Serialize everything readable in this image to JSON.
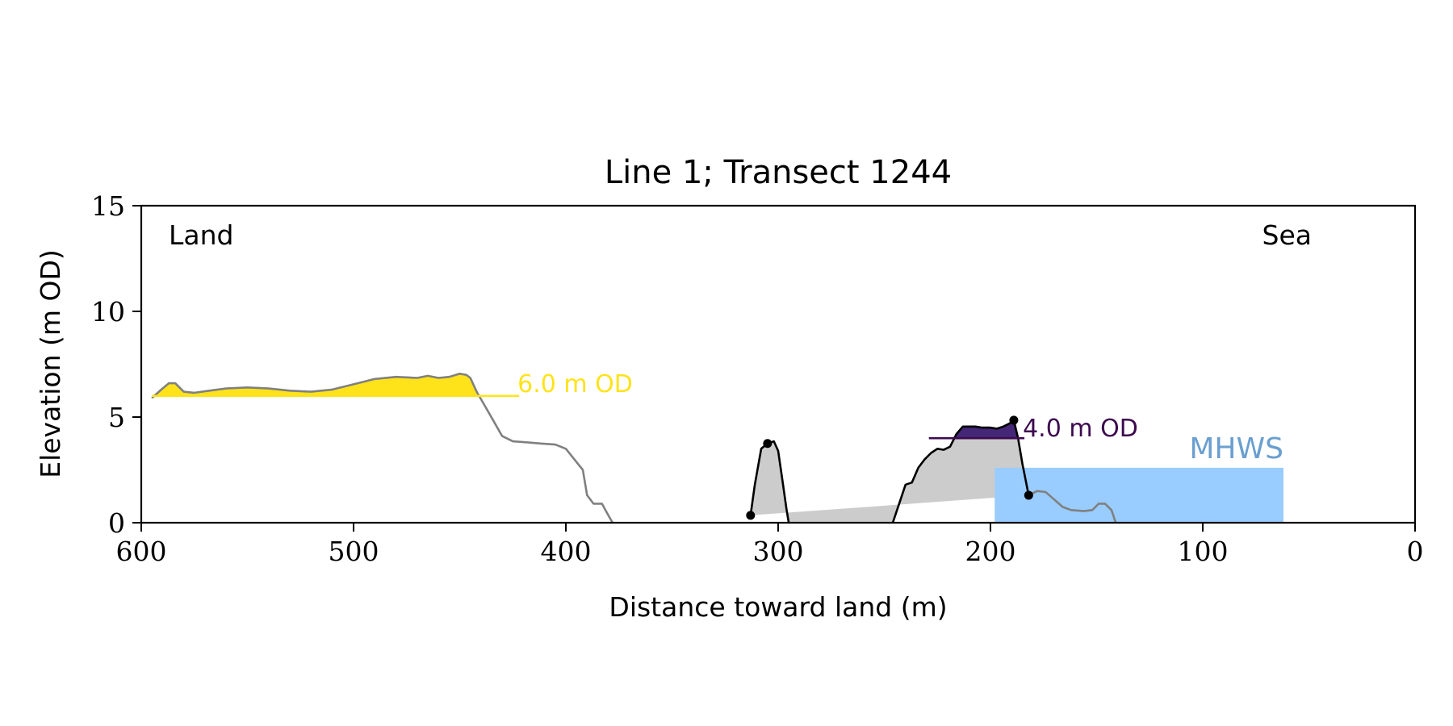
{
  "chart_data": {
    "type": "area",
    "title": "Line 1; Transect 1244",
    "xlabel": "Distance toward land (m)",
    "ylabel": "Elevation (m OD)",
    "xlim": [
      600,
      0
    ],
    "ylim": [
      0,
      15
    ],
    "x_ticks": [
      600,
      500,
      400,
      300,
      200,
      100,
      0
    ],
    "y_ticks": [
      0,
      5,
      10,
      15
    ],
    "grid": false,
    "corner_labels": {
      "left": "Land",
      "right": "Sea"
    },
    "colors": {
      "profile": "#808080",
      "dune_outline": "#000000",
      "dune_fill": "#cccccc",
      "high_fill": "#ffe31a",
      "top_fill": "#452777",
      "low_line": "#3d0a4f",
      "mhws_fill": "#99ccff",
      "mhws_text": "#6a9fd0"
    },
    "annotations": [
      {
        "id": "level-high",
        "label": "6.0 m OD",
        "elevation": 6.0,
        "x_start": 595,
        "x_end": 422,
        "color": "#ffe31a"
      },
      {
        "id": "level-low",
        "label": "4.0 m OD",
        "elevation": 4.0,
        "x_start": 229,
        "x_end": 184,
        "color": "#3d0a4f"
      }
    ],
    "mhws": {
      "label": "MHWS",
      "elevation": 2.6,
      "x_start": 198,
      "x_end": 62
    },
    "series": [
      {
        "role": "profile-land",
        "points": [
          [
            595,
            5.9
          ],
          [
            590,
            6.35
          ],
          [
            587,
            6.6
          ],
          [
            584,
            6.6
          ],
          [
            580,
            6.2
          ],
          [
            575,
            6.15
          ],
          [
            568,
            6.25
          ],
          [
            560,
            6.35
          ],
          [
            550,
            6.4
          ],
          [
            540,
            6.35
          ],
          [
            530,
            6.25
          ],
          [
            520,
            6.2
          ],
          [
            510,
            6.3
          ],
          [
            500,
            6.55
          ],
          [
            490,
            6.8
          ],
          [
            480,
            6.9
          ],
          [
            470,
            6.85
          ],
          [
            465,
            6.95
          ],
          [
            460,
            6.85
          ],
          [
            455,
            6.9
          ],
          [
            450,
            7.05
          ],
          [
            447,
            7.0
          ],
          [
            445,
            6.85
          ],
          [
            442,
            6.2
          ],
          [
            438,
            5.5
          ],
          [
            434,
            4.8
          ],
          [
            430,
            4.1
          ],
          [
            425,
            3.85
          ],
          [
            418,
            3.8
          ],
          [
            412,
            3.75
          ],
          [
            405,
            3.7
          ],
          [
            400,
            3.5
          ],
          [
            396,
            3.0
          ],
          [
            392,
            2.5
          ],
          [
            390,
            1.3
          ],
          [
            387,
            0.9
          ],
          [
            383,
            0.9
          ],
          [
            380,
            0.35
          ],
          [
            378,
            0.0
          ]
        ]
      },
      {
        "role": "dune-1",
        "points": [
          [
            313,
            0.35
          ],
          [
            311,
            1.8
          ],
          [
            308,
            3.5
          ],
          [
            305,
            3.75
          ],
          [
            302,
            3.85
          ],
          [
            300,
            3.4
          ],
          [
            298,
            2.0
          ],
          [
            296,
            0.6
          ],
          [
            295,
            0.0
          ]
        ]
      },
      {
        "role": "dune-2",
        "points": [
          [
            246,
            0.0
          ],
          [
            243,
            0.9
          ],
          [
            240,
            1.8
          ],
          [
            237,
            1.9
          ],
          [
            234,
            2.6
          ],
          [
            231,
            3.0
          ],
          [
            228,
            3.3
          ],
          [
            225,
            3.5
          ],
          [
            222,
            3.45
          ],
          [
            219,
            3.6
          ],
          [
            216,
            4.2
          ],
          [
            213,
            4.55
          ],
          [
            210,
            4.55
          ],
          [
            207,
            4.55
          ],
          [
            204,
            4.5
          ],
          [
            200,
            4.5
          ],
          [
            197,
            4.45
          ],
          [
            194,
            4.55
          ],
          [
            191,
            4.7
          ],
          [
            189,
            4.85
          ],
          [
            187,
            4.0
          ],
          [
            185,
            2.8
          ],
          [
            183,
            1.8
          ],
          [
            182,
            1.3
          ]
        ]
      },
      {
        "role": "profile-sea",
        "points": [
          [
            182,
            1.3
          ],
          [
            178,
            1.5
          ],
          [
            174,
            1.45
          ],
          [
            170,
            1.1
          ],
          [
            166,
            0.75
          ],
          [
            162,
            0.6
          ],
          [
            156,
            0.55
          ],
          [
            152,
            0.6
          ],
          [
            149,
            0.9
          ],
          [
            146,
            0.9
          ],
          [
            143,
            0.6
          ],
          [
            141,
            0.0
          ]
        ]
      }
    ],
    "markers": [
      [
        313,
        0.35
      ],
      [
        305,
        3.75
      ],
      [
        189,
        4.85
      ],
      [
        182,
        1.3
      ]
    ]
  }
}
